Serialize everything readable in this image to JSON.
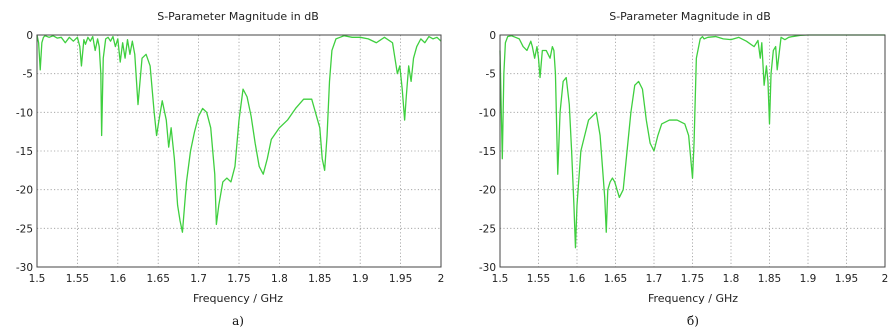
{
  "colors": {
    "series": "#3fcf3f"
  },
  "chart_data": [
    {
      "type": "line",
      "title": "S-Parameter Magnitude in dB",
      "xlabel": "Frequency / GHz",
      "ylabel": "",
      "caption": "а)",
      "xlim": [
        1.5,
        2.0
      ],
      "ylim": [
        -30,
        0
      ],
      "xticks": [
        1.5,
        1.55,
        1.6,
        1.65,
        1.7,
        1.75,
        1.8,
        1.85,
        1.9,
        1.95,
        2
      ],
      "xtick_labels": [
        "1.5",
        "1.55",
        "1.6",
        "1.65",
        "1.7",
        "1.75",
        "1.8",
        "1.85",
        "1.9",
        "1.95",
        "2"
      ],
      "yticks": [
        0,
        -5,
        -10,
        -15,
        -20,
        -25,
        -30
      ],
      "ytick_labels": [
        "0",
        "-5",
        "-10",
        "-15",
        "-20",
        "-25",
        "-30"
      ],
      "grid": true,
      "series": [
        {
          "x": [
            1.5,
            1.502,
            1.504,
            1.506,
            1.508,
            1.51,
            1.515,
            1.52,
            1.525,
            1.53,
            1.535,
            1.54,
            1.545,
            1.55,
            1.553,
            1.555,
            1.558,
            1.56,
            1.563,
            1.566,
            1.569,
            1.572,
            1.575,
            1.577,
            1.579,
            1.58,
            1.582,
            1.585,
            1.588,
            1.591,
            1.594,
            1.597,
            1.6,
            1.603,
            1.606,
            1.609,
            1.612,
            1.615,
            1.618,
            1.621,
            1.625,
            1.63,
            1.635,
            1.64,
            1.645,
            1.648,
            1.651,
            1.655,
            1.66,
            1.663,
            1.666,
            1.67,
            1.674,
            1.677,
            1.68,
            1.685,
            1.69,
            1.695,
            1.7,
            1.705,
            1.71,
            1.715,
            1.72,
            1.722,
            1.725,
            1.73,
            1.735,
            1.74,
            1.745,
            1.75,
            1.755,
            1.76,
            1.765,
            1.77,
            1.775,
            1.78,
            1.785,
            1.79,
            1.8,
            1.81,
            1.82,
            1.83,
            1.84,
            1.85,
            1.853,
            1.856,
            1.859,
            1.862,
            1.865,
            1.87,
            1.875,
            1.88,
            1.89,
            1.9,
            1.91,
            1.92,
            1.93,
            1.94,
            1.943,
            1.946,
            1.949,
            1.952,
            1.955,
            1.957,
            1.96,
            1.963,
            1.966,
            1.97,
            1.975,
            1.98,
            1.985,
            1.99,
            1.995,
            2.0
          ],
          "y": [
            0,
            -1,
            -4.5,
            -1,
            -0.3,
            -0.1,
            -0.3,
            -0.1,
            -0.4,
            -0.3,
            -1,
            -0.3,
            -0.8,
            -0.3,
            -1.5,
            -4,
            -0.6,
            -1.2,
            -0.3,
            -0.8,
            -0.2,
            -2,
            -0.5,
            -1.5,
            -5,
            -13,
            -3,
            -0.5,
            -0.3,
            -0.8,
            -0.2,
            -1.5,
            -0.5,
            -3.5,
            -1,
            -3,
            -0.6,
            -2.5,
            -0.8,
            -2.5,
            -9,
            -3,
            -2.5,
            -4,
            -10,
            -13,
            -11,
            -8.5,
            -11,
            -14.5,
            -12,
            -16,
            -22,
            -24,
            -25.5,
            -19,
            -15,
            -12.5,
            -10.5,
            -9.5,
            -10,
            -12,
            -18,
            -24.5,
            -22,
            -19,
            -18.5,
            -19,
            -17,
            -11,
            -7,
            -8,
            -10.5,
            -14,
            -17,
            -18,
            -16,
            -13.5,
            -12,
            -11,
            -9.5,
            -8.3,
            -8.3,
            -12,
            -16,
            -17.5,
            -13,
            -6,
            -2,
            -0.5,
            -0.3,
            -0.1,
            -0.3,
            -0.3,
            -0.5,
            -1,
            -0.3,
            -1,
            -3,
            -5,
            -4,
            -7,
            -11,
            -8,
            -4,
            -6,
            -3,
            -1.5,
            -0.5,
            -1,
            -0.2,
            -0.5,
            -0.3,
            -0.8
          ]
        }
      ]
    },
    {
      "type": "line",
      "title": "S-Parameter Magnitude in dB",
      "xlabel": "Frequency / GHz",
      "ylabel": "",
      "caption": "б)",
      "xlim": [
        1.5,
        2.0
      ],
      "ylim": [
        -30,
        0
      ],
      "xticks": [
        1.5,
        1.55,
        1.6,
        1.65,
        1.7,
        1.75,
        1.8,
        1.85,
        1.9,
        1.95,
        2
      ],
      "xtick_labels": [
        "1.5",
        "1.55",
        "1.6",
        "1.65",
        "1.7",
        "1.75",
        "1.8",
        "1.85",
        "1.9",
        "1.95",
        "2"
      ],
      "yticks": [
        0,
        -5,
        -10,
        -15,
        -20,
        -25,
        -30
      ],
      "ytick_labels": [
        "0",
        "-5",
        "-10",
        "-15",
        "-20",
        "-25",
        "-30"
      ],
      "grid": true,
      "series": [
        {
          "x": [
            1.5,
            1.503,
            1.505,
            1.507,
            1.51,
            1.515,
            1.52,
            1.525,
            1.53,
            1.535,
            1.54,
            1.542,
            1.545,
            1.548,
            1.55,
            1.552,
            1.555,
            1.56,
            1.565,
            1.568,
            1.57,
            1.572,
            1.575,
            1.578,
            1.582,
            1.586,
            1.59,
            1.593,
            1.596,
            1.598,
            1.6,
            1.605,
            1.61,
            1.615,
            1.62,
            1.625,
            1.63,
            1.633,
            1.636,
            1.638,
            1.64,
            1.643,
            1.646,
            1.649,
            1.652,
            1.655,
            1.66,
            1.665,
            1.67,
            1.675,
            1.68,
            1.685,
            1.69,
            1.695,
            1.7,
            1.705,
            1.71,
            1.72,
            1.73,
            1.74,
            1.745,
            1.75,
            1.752,
            1.755,
            1.76,
            1.763,
            1.765,
            1.77,
            1.78,
            1.79,
            1.8,
            1.81,
            1.82,
            1.83,
            1.835,
            1.838,
            1.84,
            1.843,
            1.846,
            1.848,
            1.85,
            1.852,
            1.855,
            1.858,
            1.86,
            1.865,
            1.87,
            1.875,
            1.88,
            1.89,
            1.9,
            1.95,
            2.0
          ],
          "y": [
            -2,
            -16,
            -5,
            -1,
            -0.2,
            -0.1,
            -0.3,
            -0.5,
            -1.5,
            -2,
            -0.8,
            -1.5,
            -3,
            -1.5,
            -3,
            -5.5,
            -2,
            -2,
            -3,
            -1.5,
            -2,
            -5,
            -18,
            -10,
            -6,
            -5.5,
            -9,
            -15,
            -22,
            -27.5,
            -22,
            -15,
            -13,
            -11,
            -10.5,
            -10,
            -13,
            -17,
            -21,
            -25.5,
            -20,
            -19,
            -18.5,
            -19,
            -20,
            -21,
            -20,
            -15,
            -10,
            -6.5,
            -6,
            -7,
            -11,
            -14,
            -15,
            -13,
            -11.5,
            -11,
            -11,
            -11.5,
            -13,
            -18.5,
            -14,
            -3,
            -0.5,
            -0.2,
            -0.5,
            -0.3,
            -0.2,
            -0.5,
            -0.6,
            -0.3,
            -0.8,
            -1.5,
            -0.7,
            -3,
            -1,
            -6.5,
            -4,
            -6,
            -11.5,
            -5,
            -2,
            -1.5,
            -4.5,
            -0.3,
            -0.6,
            -0.3,
            -0.2,
            -0.05,
            0,
            0,
            0
          ]
        }
      ]
    }
  ]
}
